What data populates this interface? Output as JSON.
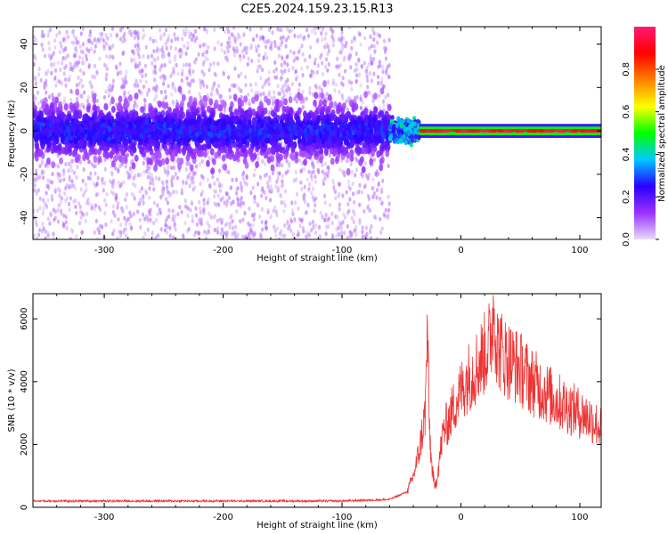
{
  "figure": {
    "title": "C2E5.2024.159.23.15.R13"
  },
  "chart_data": [
    {
      "type": "heatmap",
      "title": "",
      "xlabel": "Height of straight line (km)",
      "ylabel": "Frequency (Hz)",
      "xlim": [
        -360,
        118
      ],
      "ylim": [
        -50,
        48
      ],
      "xticks": [
        -300,
        -200,
        -100,
        0,
        100
      ],
      "yticks": [
        -40,
        -20,
        0,
        20,
        40
      ],
      "colorbar": {
        "label": "Normalized spectral amplitude",
        "range": [
          0,
          1
        ],
        "ticks": [
          0.0,
          0.2,
          0.4,
          0.6,
          0.8
        ],
        "tick_labels": [
          "0.0",
          "0.2",
          "0.4",
          "0.6",
          "0.8"
        ],
        "colormap": [
          "#e6dcf8",
          "#9b30ff",
          "#2a00ff",
          "#00c8ff",
          "#00ff00",
          "#ffff00",
          "#ff8000",
          "#ff0000",
          "#ff1a70"
        ]
      },
      "description_regions": [
        {
          "x_range": [
            -360,
            -60
          ],
          "frequency_band": [
            -10,
            10
          ],
          "amplitude": 0.1,
          "scatter_extent": [
            -50,
            48
          ]
        },
        {
          "x_range": [
            -60,
            -35
          ],
          "frequency_band": [
            -5,
            5
          ],
          "amplitude": 0.3
        },
        {
          "x_range": [
            -35,
            118
          ],
          "frequency_band": [
            -2,
            2
          ],
          "amplitude": 0.9
        }
      ]
    },
    {
      "type": "line",
      "title": "",
      "xlabel": "Height of straight line (km)",
      "ylabel": "SNR (10 * v/v)",
      "xlim": [
        -360,
        118
      ],
      "ylim": [
        0,
        6800
      ],
      "xticks": [
        -300,
        -200,
        -100,
        0,
        100
      ],
      "yticks": [
        0,
        2000,
        4000,
        6000
      ],
      "color": "#ee3333",
      "series": [
        {
          "x": [
            -360,
            -300,
            -250,
            -200,
            -150,
            -100,
            -60,
            -45,
            -40,
            -35,
            -30,
            -28,
            -27,
            -25,
            -22,
            -20,
            -15,
            -10,
            -5,
            0,
            5,
            10,
            15,
            20,
            25,
            28,
            30,
            35,
            40,
            50,
            60,
            70,
            80,
            90,
            100,
            110,
            118
          ],
          "y": [
            200,
            200,
            200,
            200,
            200,
            200,
            250,
            500,
            1000,
            1800,
            3000,
            6000,
            3000,
            1500,
            600,
            1000,
            2400,
            2800,
            3300,
            3700,
            4100,
            4300,
            4600,
            4900,
            5300,
            6500,
            5200,
            4900,
            4700,
            4400,
            4000,
            3700,
            3400,
            3200,
            3000,
            2800,
            2500
          ]
        }
      ]
    }
  ]
}
